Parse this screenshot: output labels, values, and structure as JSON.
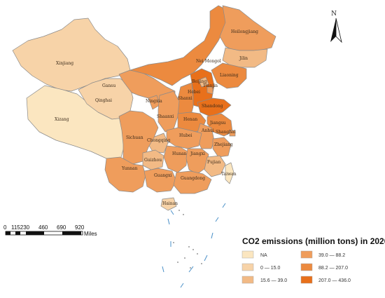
{
  "map": {
    "north_label": "N",
    "scale": {
      "ticks": [
        "0",
        "115230",
        "460",
        "690",
        "920"
      ],
      "unit": "Miles"
    },
    "legend": {
      "title": "CO2 emissions (million tons) in 2020",
      "classes": [
        {
          "label": "NA",
          "color": "#fbe6c0"
        },
        {
          "label": "0 — 15.0",
          "color": "#f7d3a8"
        },
        {
          "label": "15.6 — 39.0",
          "color": "#f2ba85"
        },
        {
          "label": "39.0 — 88.2",
          "color": "#ef9d5c"
        },
        {
          "label": "88.2 — 207.0",
          "color": "#ec8a3f"
        },
        {
          "label": "207.0 — 436.0",
          "color": "#e8701b"
        }
      ]
    },
    "provinces": {
      "xinjiang": {
        "label": "Xinjiang",
        "class": 1
      },
      "xizang": {
        "label": "Xizang",
        "class": 0
      },
      "qinghai": {
        "label": "Qinghai",
        "class": 1
      },
      "gansu": {
        "label": "Gansu",
        "class": 3
      },
      "nei_mongol": {
        "label": "Nei Mongol",
        "class": 4
      },
      "heilongjiang": {
        "label": "Heilongjiang",
        "class": 3
      },
      "jilin": {
        "label": "Jilin",
        "class": 2
      },
      "liaoning": {
        "label": "Liaoning",
        "class": 4
      },
      "beijing": {
        "label": "Beijing",
        "class": 2
      },
      "tianjin": {
        "label": "Tianjin",
        "class": 3
      },
      "hebei": {
        "label": "Hebei",
        "class": 5
      },
      "shanxi": {
        "label": "Shanxi",
        "class": 4
      },
      "shaanxi": {
        "label": "Shaanxi",
        "class": 3
      },
      "ningxia": {
        "label": "Ningxia",
        "class": 3
      },
      "shandong": {
        "label": "Shandong",
        "class": 5
      },
      "henan": {
        "label": "Henan",
        "class": 4
      },
      "jiangsu": {
        "label": "Jiangsu",
        "class": 4
      },
      "anhui": {
        "label": "Anhui",
        "class": 3
      },
      "shanghai": {
        "label": "Shanghai",
        "class": 3
      },
      "hubei": {
        "label": "Hubei",
        "class": 3
      },
      "chongqing": {
        "label": "Chongqing",
        "class": 2
      },
      "sichuan": {
        "label": "Sichuan",
        "class": 3
      },
      "zhejiang": {
        "label": "Zhejiang",
        "class": 3
      },
      "guizhou": {
        "label": "Guizhou",
        "class": 2
      },
      "hunan": {
        "label": "Hunan",
        "class": 3
      },
      "jiangxi": {
        "label": "Jiangxi",
        "class": 3
      },
      "fujian": {
        "label": "Fujian",
        "class": 2
      },
      "yunnan": {
        "label": "Yunnan",
        "class": 3
      },
      "guangxi": {
        "label": "Guangxi",
        "class": 3
      },
      "guangdong": {
        "label": "Guangdong",
        "class": 3
      },
      "hainan": {
        "label": "Hainan",
        "class": 1
      },
      "taiwan": {
        "label": "Taiwan",
        "class": 0
      }
    }
  }
}
